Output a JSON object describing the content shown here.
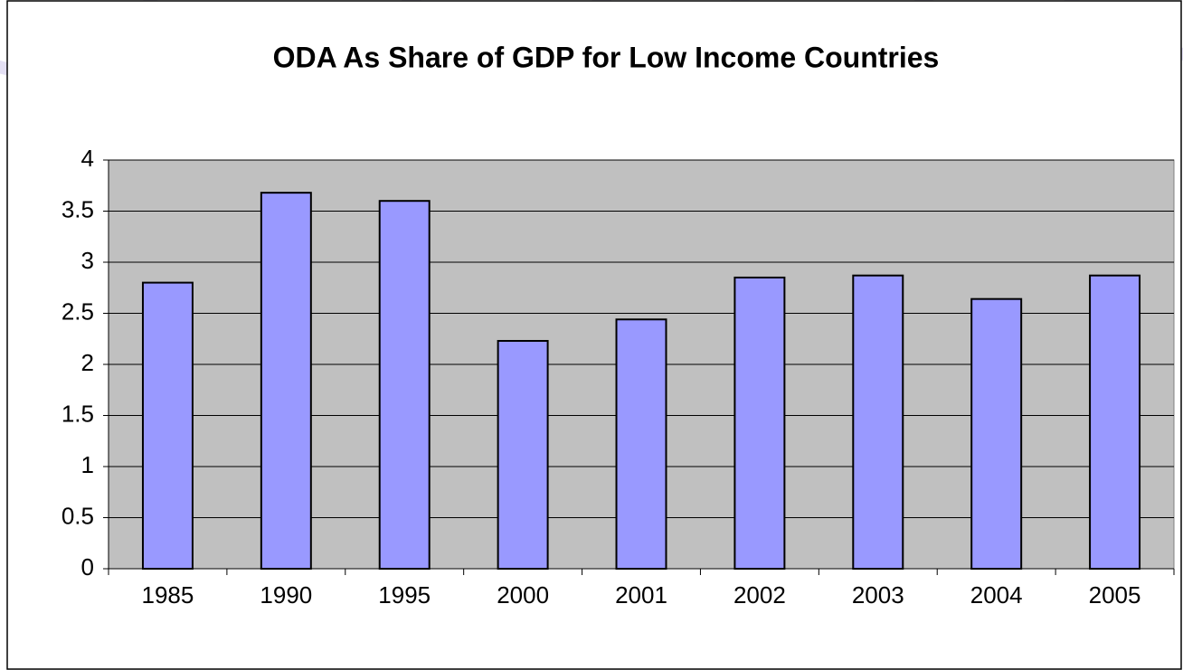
{
  "chart_data": {
    "type": "bar",
    "title": "ODA As Share of GDP for Low Income Countries",
    "categories": [
      "1985",
      "1990",
      "1995",
      "2000",
      "2001",
      "2002",
      "2003",
      "2004",
      "2005"
    ],
    "values": [
      2.8,
      3.68,
      3.6,
      2.23,
      2.44,
      2.85,
      2.87,
      2.64,
      2.87
    ],
    "color": "#9999ff",
    "ylim": [
      0,
      4
    ],
    "yticks": [
      0,
      0.5,
      1,
      1.5,
      2,
      2.5,
      3,
      3.5,
      4
    ],
    "grid": true
  }
}
